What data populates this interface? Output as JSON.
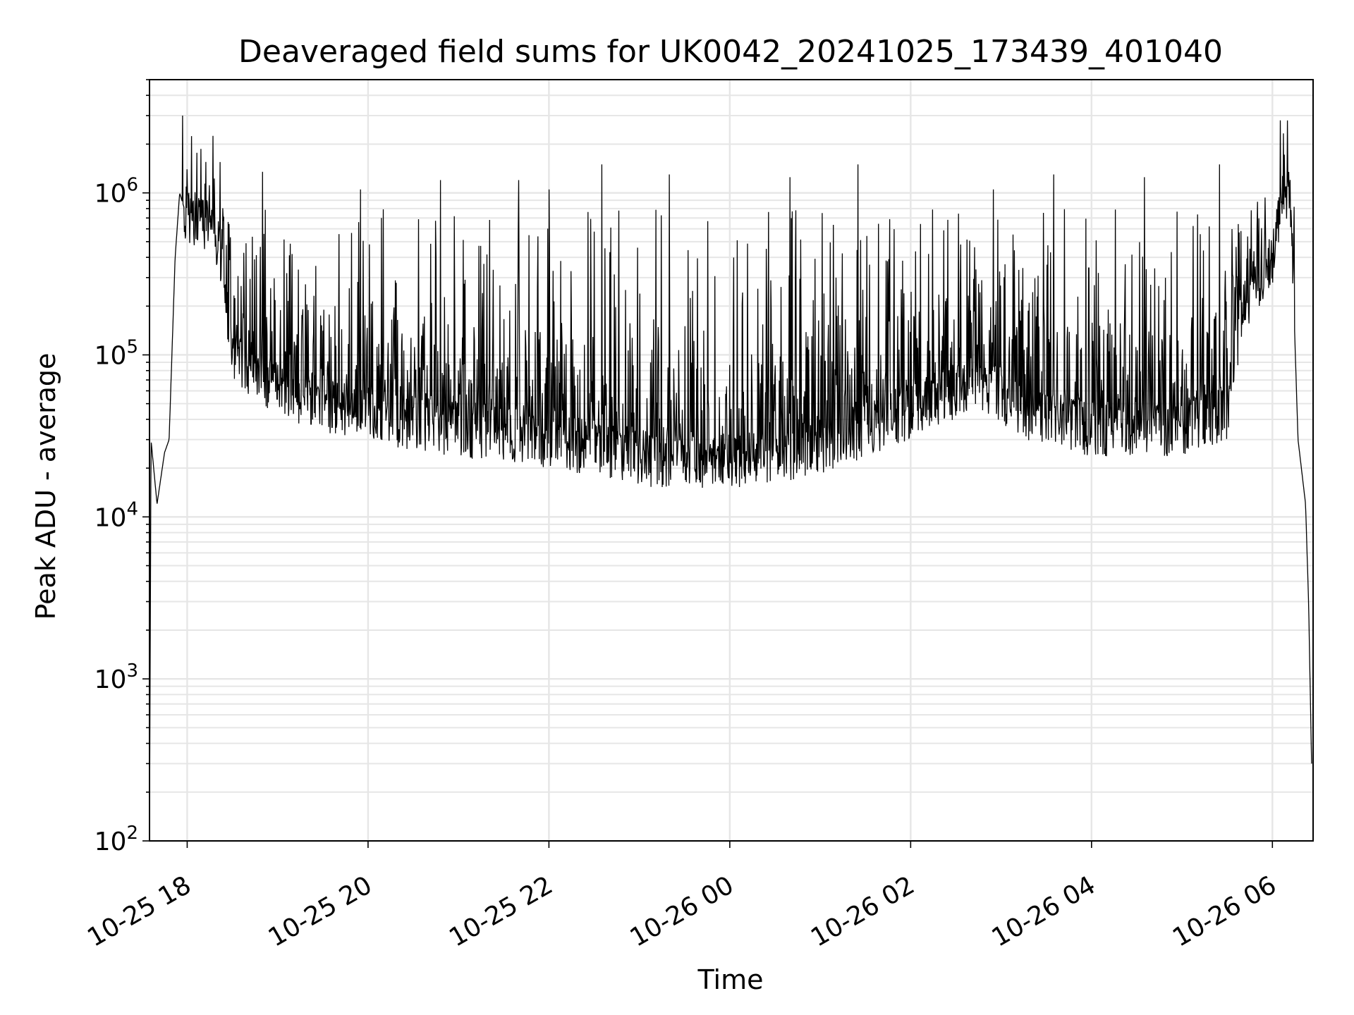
{
  "chart_data": {
    "type": "line",
    "title": "Deaveraged field sums for UK0042_20241025_173439_401040",
    "xlabel": "Time",
    "ylabel": "Peak ADU - average",
    "yscale": "log",
    "ylim": [
      100,
      5000000
    ],
    "xlim": [
      "2024-10-25 17:35",
      "2024-10-26 06:27"
    ],
    "grid": true,
    "line_color": "#000000",
    "grid_color": "#e6e6e6",
    "x_ticks": [
      {
        "value": "2024-10-25 18:00",
        "label": "10-25 18"
      },
      {
        "value": "2024-10-25 20:00",
        "label": "10-25 20"
      },
      {
        "value": "2024-10-25 22:00",
        "label": "10-25 22"
      },
      {
        "value": "2024-10-26 00:00",
        "label": "10-26 00"
      },
      {
        "value": "2024-10-26 02:00",
        "label": "10-26 02"
      },
      {
        "value": "2024-10-26 04:00",
        "label": "10-26 04"
      },
      {
        "value": "2024-10-26 06:00",
        "label": "10-26 06"
      }
    ],
    "y_ticks": [
      {
        "value": 100,
        "base": "10",
        "exp": "2"
      },
      {
        "value": 1000,
        "base": "10",
        "exp": "3"
      },
      {
        "value": 10000,
        "base": "10",
        "exp": "4"
      },
      {
        "value": 100000,
        "base": "10",
        "exp": "5"
      },
      {
        "value": 1000000,
        "base": "10",
        "exp": "6"
      }
    ],
    "series": [
      {
        "baseline": [
          [
            "2024-10-25 17:35",
            100
          ],
          [
            "2024-10-25 17:36",
            30000
          ],
          [
            "2024-10-25 17:40",
            12000
          ],
          [
            "2024-10-25 17:45",
            25000
          ],
          [
            "2024-10-25 17:48",
            30000
          ],
          [
            "2024-10-25 17:52",
            400000
          ],
          [
            "2024-10-25 17:55",
            1000000
          ],
          [
            "2024-10-25 18:00",
            700000
          ],
          [
            "2024-10-25 18:10",
            700000
          ],
          [
            "2024-10-25 18:20",
            500000
          ],
          [
            "2024-10-25 18:30",
            100000
          ],
          [
            "2024-10-25 19:00",
            60000
          ],
          [
            "2024-10-25 20:00",
            42000
          ],
          [
            "2024-10-25 21:00",
            35000
          ],
          [
            "2024-10-25 22:00",
            30000
          ],
          [
            "2024-10-25 23:00",
            23000
          ],
          [
            "2024-10-26 00:00",
            22000
          ],
          [
            "2024-10-26 01:00",
            27000
          ],
          [
            "2024-10-26 02:00",
            45000
          ],
          [
            "2024-10-26 02:45",
            70000
          ],
          [
            "2024-10-26 03:15",
            45000
          ],
          [
            "2024-10-26 04:00",
            35000
          ],
          [
            "2024-10-26 05:00",
            35000
          ],
          [
            "2024-10-26 05:30",
            45000
          ],
          [
            "2024-10-26 05:40",
            200000
          ],
          [
            "2024-10-26 06:00",
            400000
          ],
          [
            "2024-10-26 06:08",
            1000000
          ],
          [
            "2024-10-26 06:12",
            900000
          ],
          [
            "2024-10-26 06:17",
            30000
          ],
          [
            "2024-10-26 06:22",
            12000
          ],
          [
            "2024-10-26 06:24",
            3000
          ],
          [
            "2024-10-26 06:26",
            300
          ]
        ],
        "peaks": [
          [
            "2024-10-25 17:57",
            3000000
          ],
          [
            "2024-10-25 18:00",
            1400000
          ],
          [
            "2024-10-25 18:22",
            1550000
          ],
          [
            "2024-10-25 18:50",
            1350000
          ],
          [
            "2024-10-25 19:55",
            1050000
          ],
          [
            "2024-10-25 20:48",
            1200000
          ],
          [
            "2024-10-25 21:40",
            1200000
          ],
          [
            "2024-10-25 22:00",
            1050000
          ],
          [
            "2024-10-25 22:35",
            1500000
          ],
          [
            "2024-10-25 23:20",
            1300000
          ],
          [
            "2024-10-26 00:40",
            1250000
          ],
          [
            "2024-10-26 01:25",
            1500000
          ],
          [
            "2024-10-26 02:55",
            1050000
          ],
          [
            "2024-10-26 03:35",
            1300000
          ],
          [
            "2024-10-26 04:35",
            1250000
          ],
          [
            "2024-10-26 05:25",
            1500000
          ],
          [
            "2024-10-26 06:10",
            2800000
          ]
        ]
      }
    ]
  }
}
